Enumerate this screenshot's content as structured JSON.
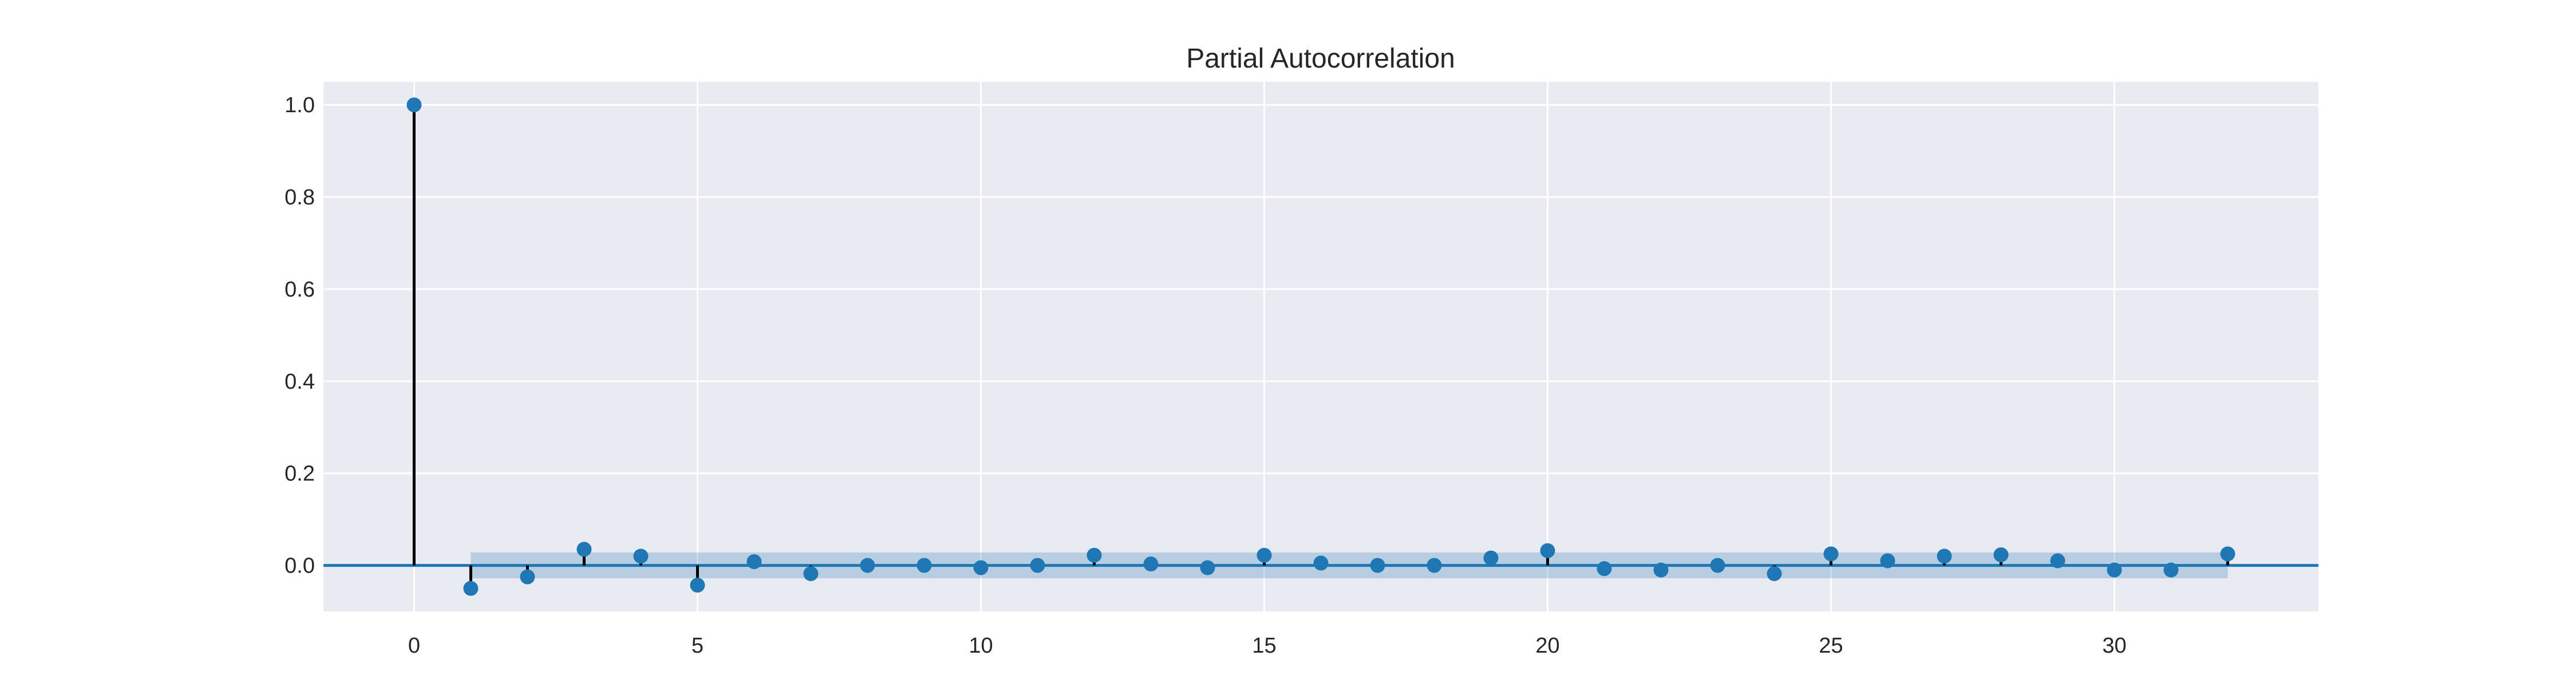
{
  "chart_data": {
    "type": "stem",
    "title": "Partial Autocorrelation",
    "xlabel": "",
    "ylabel": "",
    "xlim": [
      -1.6,
      33.6
    ],
    "ylim": [
      -0.1,
      1.05
    ],
    "x_ticks": [
      0,
      5,
      10,
      15,
      20,
      25,
      30
    ],
    "y_ticks": [
      0.0,
      0.2,
      0.4,
      0.6,
      0.8,
      1.0
    ],
    "x_tick_labels": [
      "0",
      "5",
      "10",
      "15",
      "20",
      "25",
      "30"
    ],
    "y_tick_labels": [
      "0.0",
      "0.2",
      "0.4",
      "0.6",
      "0.8",
      "1.0"
    ],
    "grid": true,
    "confidence_band": {
      "x_start": 1,
      "x_end": 32,
      "lower": -0.028,
      "upper": 0.028
    },
    "x": [
      0,
      1,
      2,
      3,
      4,
      5,
      6,
      7,
      8,
      9,
      10,
      11,
      12,
      13,
      14,
      15,
      16,
      17,
      18,
      19,
      20,
      21,
      22,
      23,
      24,
      25,
      26,
      27,
      28,
      29,
      30,
      31,
      32
    ],
    "values": [
      1.0,
      -0.05,
      -0.025,
      0.035,
      0.02,
      -0.043,
      0.008,
      -0.018,
      0.0,
      0.0,
      -0.005,
      0.0,
      0.022,
      0.003,
      -0.005,
      0.022,
      0.005,
      0.0,
      0.0,
      0.016,
      0.032,
      -0.007,
      -0.01,
      0.0,
      -0.018,
      0.025,
      0.01,
      0.02,
      0.023,
      0.01,
      -0.01,
      -0.01,
      0.025
    ]
  },
  "colors": {
    "background": "#eaeaf2",
    "grid": "#ffffff",
    "marker": "#1f77b4",
    "stem": "#000000",
    "zero_line": "#1f77b4",
    "band": "#1f77b4",
    "text": "#262626"
  }
}
